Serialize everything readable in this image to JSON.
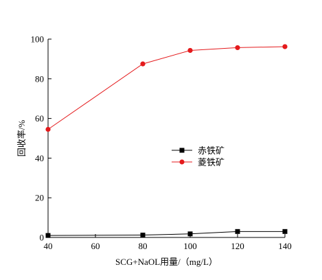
{
  "chart_data": {
    "type": "line",
    "xlabel": "SCG+NaOL用量/（mg/L）",
    "ylabel": "回收率/%",
    "xlim": [
      40,
      140
    ],
    "ylim": [
      0,
      100
    ],
    "x_ticks": [
      40,
      60,
      80,
      100,
      120,
      140
    ],
    "y_ticks": [
      0,
      20,
      40,
      60,
      80,
      100
    ],
    "grid": false,
    "legend_position": "center-right",
    "series": [
      {
        "name": "赤铁矿",
        "color": "#000000",
        "marker": "square",
        "x": [
          40,
          80,
          100,
          120,
          140
        ],
        "y": [
          1,
          1.2,
          1.8,
          3,
          3
        ]
      },
      {
        "name": "菱铁矿",
        "color": "#e41a1c",
        "marker": "circle",
        "x": [
          40,
          80,
          100,
          120,
          140
        ],
        "y": [
          54.5,
          87.5,
          94.3,
          95.7,
          96.2
        ]
      }
    ]
  }
}
